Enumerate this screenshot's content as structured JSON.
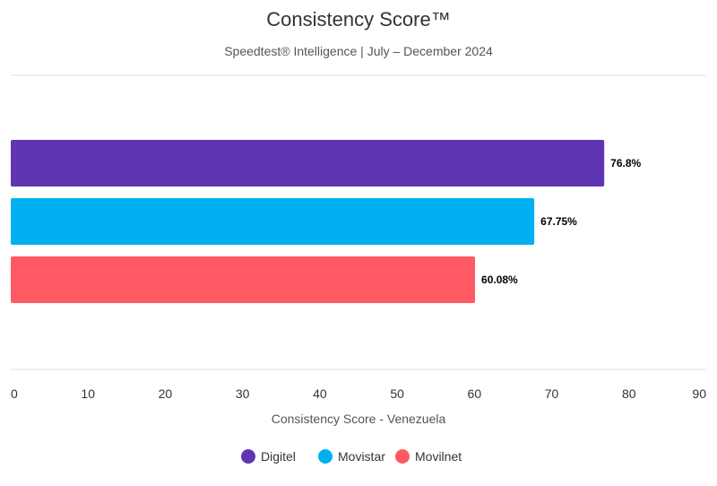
{
  "chart_data": {
    "type": "bar",
    "orientation": "horizontal",
    "title": "Consistency Score™",
    "subtitle": "Speedtest® Intelligence | July – December 2024",
    "xlabel": "Consistency Score - Venezuela",
    "ylabel": "",
    "xlim": [
      0,
      90
    ],
    "ticks": [
      0,
      10,
      20,
      30,
      40,
      50,
      60,
      70,
      80,
      90
    ],
    "categories": [
      "Digitel",
      "Movistar",
      "Movilnet"
    ],
    "values": [
      76.8,
      67.75,
      60.08
    ],
    "data_labels": [
      "76.8%",
      "67.75%",
      "60.08%"
    ],
    "colors": [
      "#6035b3",
      "#00b0f0",
      "#ff5a64"
    ],
    "grid": false,
    "legend": {
      "position": "bottom-center",
      "entries": [
        "Digitel",
        "Movistar",
        "Movilnet"
      ]
    }
  }
}
